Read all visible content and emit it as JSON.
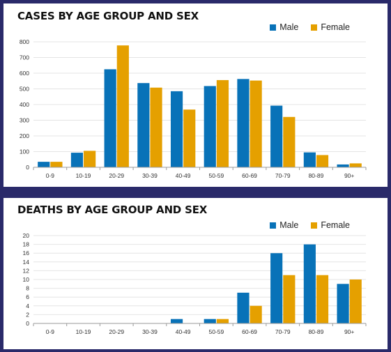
{
  "colors": {
    "male": "#0872b8",
    "female": "#e5a000",
    "background": "#2a2a6a"
  },
  "chart_data": [
    {
      "type": "bar",
      "title": "CASES BY AGE GROUP AND SEX",
      "categories": [
        "0-9",
        "10-19",
        "20-29",
        "30-39",
        "40-49",
        "50-59",
        "60-69",
        "70-79",
        "80-89",
        "90+"
      ],
      "series": [
        {
          "name": "Male",
          "values": [
            35,
            93,
            625,
            537,
            485,
            518,
            563,
            393,
            95,
            18
          ]
        },
        {
          "name": "Female",
          "values": [
            35,
            105,
            777,
            508,
            368,
            556,
            553,
            321,
            78,
            25
          ]
        }
      ],
      "ylim": [
        0,
        800
      ],
      "yticks": [
        "0",
        "100",
        "200",
        "300",
        "400",
        "500",
        "600",
        "700",
        "800"
      ],
      "xlabel": "",
      "ylabel": "",
      "grid": true,
      "legend": "top-right"
    },
    {
      "type": "bar",
      "title": "DEATHS BY AGE GROUP AND SEX",
      "categories": [
        "0-9",
        "10-19",
        "20-29",
        "30-39",
        "40-49",
        "50-59",
        "60-69",
        "70-79",
        "80-89",
        "90+"
      ],
      "series": [
        {
          "name": "Male",
          "values": [
            0,
            0,
            0,
            0,
            1,
            1,
            7,
            16,
            18,
            9
          ]
        },
        {
          "name": "Female",
          "values": [
            0,
            0,
            0,
            0,
            0,
            1,
            4,
            11,
            11,
            10
          ]
        }
      ],
      "ylim": [
        0,
        20
      ],
      "yticks": [
        "0",
        "2",
        "4",
        "6",
        "8",
        "10",
        "12",
        "14",
        "16",
        "18",
        "20"
      ],
      "xlabel": "",
      "ylabel": "",
      "grid": true,
      "legend": "top-right"
    }
  ]
}
